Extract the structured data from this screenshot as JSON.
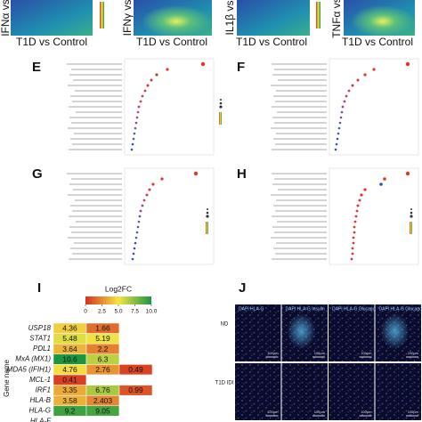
{
  "top_panels": [
    {
      "y_label": "IFNα vs",
      "x_label": "T1D vs Control"
    },
    {
      "y_label": "IFNγ vs",
      "x_label": "T1D vs Control"
    },
    {
      "y_label": "IL1β vs",
      "x_label": "T1D vs Control"
    },
    {
      "y_label": "TNFα vs",
      "x_label": "T1D vs Control"
    }
  ],
  "panel_labels": [
    "E",
    "F",
    "G",
    "H",
    "I",
    "J"
  ],
  "heatmap": {
    "legend_title": "Log2FC",
    "legend_range": [
      0,
      10
    ],
    "legend_ticks": [
      0,
      2.5,
      {
        "value": 5,
        "label": "5.0"
      },
      7.5,
      {
        "value": 10,
        "label": "10.0"
      }
    ],
    "y_axis_label": "Gene name",
    "rows": [
      {
        "gene": "USP18",
        "values": [
          4.36,
          1.66,
          null
        ]
      },
      {
        "gene": "STAT1",
        "values": [
          5.48,
          5.19,
          null
        ]
      },
      {
        "gene": "PDL1",
        "values": [
          3.64,
          2.2,
          null
        ]
      },
      {
        "gene": "MxA (MX1)",
        "values": [
          10.6,
          6.3,
          null
        ]
      },
      {
        "gene": "MDA5 (IFIH1)",
        "values": [
          4.76,
          2.76,
          0.49
        ]
      },
      {
        "gene": "MCL-1",
        "values": [
          0.41,
          null,
          null
        ]
      },
      {
        "gene": "IRF1",
        "values": [
          3.35,
          6.76,
          0.99
        ]
      },
      {
        "gene": "HLA-B",
        "values": [
          3.58,
          2.403,
          null
        ]
      },
      {
        "gene": "HLA-G",
        "values": [
          9.2,
          9.05,
          null
        ]
      },
      {
        "gene": "HLA-F",
        "values": [
          null,
          null,
          null
        ]
      }
    ]
  },
  "imaging": {
    "columns": [
      "DAPI HLA-G",
      "DAPI HLA-G Insulin",
      "DAPI HLA-G Glucagon",
      "DAPI HLA-G Glucagon Insulin"
    ],
    "rows": [
      "ND",
      "T1D IDI"
    ],
    "scale_bar": "100µm"
  }
}
